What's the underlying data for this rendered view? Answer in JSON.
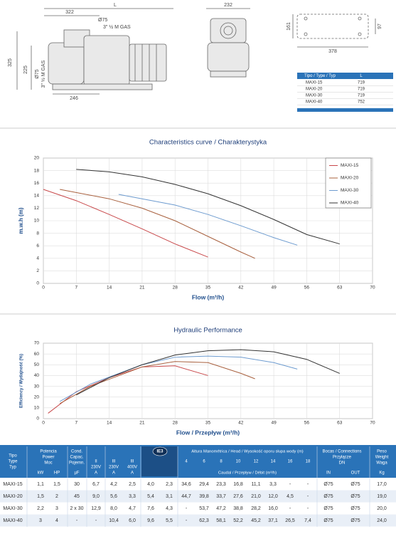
{
  "drawing": {
    "dims": {
      "side_length": "322",
      "total_length": "L",
      "outlet_dia": "Ø75",
      "outlet_thread": "3\" ½ M GAS",
      "height": "325",
      "inlet_height": "225",
      "inlet_dia": "Ø75",
      "inlet_thread": "3\" ½ M GAS",
      "base_length": "246",
      "front_width": "232",
      "foot_width": "161",
      "foot_hole": "97",
      "foot_length": "378"
    }
  },
  "type_table": {
    "header": [
      "Tipo / Type / Typ",
      "L"
    ],
    "rows": [
      [
        "MAXI-15",
        "719"
      ],
      [
        "MAXI-20",
        "719"
      ],
      [
        "MAXI-30",
        "719"
      ],
      [
        "MAXI-40",
        "752"
      ]
    ]
  },
  "chart_data": [
    {
      "type": "line",
      "title": "Characteristics curve / Charakterystyka",
      "x_label": "Flow (m³/h)",
      "y_label": "m.w.h (m)",
      "xlim": [
        0,
        70
      ],
      "xticks": [
        0,
        7,
        14,
        21,
        28,
        35,
        42,
        49,
        56,
        63,
        70
      ],
      "ylim": [
        0,
        20
      ],
      "yticks": [
        0,
        2,
        4,
        6,
        8,
        10,
        12,
        14,
        16,
        18,
        20
      ],
      "grid": true,
      "legend": "upper right",
      "series": [
        {
          "name": "MAXI-15",
          "color": "#c8484a",
          "x": [
            0,
            7,
            14,
            21,
            28,
            35
          ],
          "values": [
            15,
            13.2,
            11,
            8.7,
            6.3,
            4.2
          ]
        },
        {
          "name": "MAXI-20",
          "color": "#a8603e",
          "x": [
            3.5,
            14,
            21,
            28,
            35,
            42,
            45
          ],
          "values": [
            15,
            13.5,
            12,
            10,
            7.5,
            5,
            4
          ]
        },
        {
          "name": "MAXI-30",
          "color": "#6d9bcf",
          "x": [
            16,
            28,
            35,
            42,
            49,
            54
          ],
          "values": [
            14.2,
            12.5,
            11,
            9.2,
            7.3,
            6.1
          ]
        },
        {
          "name": "MAXI-40",
          "color": "#333333",
          "x": [
            7,
            14,
            21,
            28,
            35,
            42,
            49,
            56,
            63
          ],
          "values": [
            18.2,
            17.8,
            17,
            15.8,
            14.3,
            12.4,
            10.2,
            7.8,
            6.3
          ]
        }
      ]
    },
    {
      "type": "line",
      "title": "Hydraulic Performance",
      "x_label": "Flow / Przepływ (m³/h)",
      "y_label": "Efficiency / Wydajność (%)",
      "xlim": [
        0,
        70
      ],
      "xticks": [
        0,
        7,
        14,
        21,
        28,
        35,
        42,
        49,
        56,
        63,
        70
      ],
      "ylim": [
        0,
        70
      ],
      "yticks": [
        0,
        10,
        20,
        30,
        40,
        50,
        60,
        70
      ],
      "grid": true,
      "series": [
        {
          "color": "#c8484a",
          "x": [
            1,
            7,
            14,
            21,
            28,
            35
          ],
          "values": [
            5,
            25,
            38,
            48,
            49,
            40
          ]
        },
        {
          "color": "#a8603e",
          "x": [
            3.5,
            10,
            21,
            28,
            35,
            42,
            45
          ],
          "values": [
            14,
            30,
            48,
            53,
            52,
            42,
            37
          ]
        },
        {
          "color": "#6d9bcf",
          "x": [
            3.5,
            10,
            21,
            28,
            35,
            42,
            49,
            54
          ],
          "values": [
            16,
            32,
            50,
            57,
            58,
            57,
            52,
            46
          ]
        },
        {
          "color": "#333333",
          "x": [
            7,
            14,
            21,
            28,
            35,
            42,
            49,
            56,
            63
          ],
          "values": [
            22,
            38,
            50,
            59,
            63,
            64,
            62,
            55,
            42
          ]
        }
      ]
    }
  ],
  "spec_table": {
    "header": {
      "type": [
        "Tipo",
        "Type",
        "Typ"
      ],
      "power": [
        "Potencia",
        "Power",
        "Moc"
      ],
      "power_units": [
        "kW",
        "HP"
      ],
      "capacitor": [
        "Cond.",
        "Capac.",
        "Pojemn.",
        "µF"
      ],
      "current_groups": [
        [
          "II",
          "230V",
          "A"
        ],
        [
          "III",
          "230V",
          "A"
        ],
        [
          "III",
          "400V",
          "A"
        ],
        [
          "III",
          "230V",
          "A"
        ],
        [
          "III",
          "400V",
          "A"
        ]
      ],
      "ie3": "IE3",
      "head": "Altura Manométrica / Head / Wysokość oporu słupa wody (m)",
      "head_values": [
        "4",
        "6",
        "8",
        "10",
        "12",
        "14",
        "16",
        "18"
      ],
      "flow": "Caudal / Przepływ / Débit (m³/h)",
      "connections": [
        "Bocas / Connections",
        "Przyłącze",
        "DN"
      ],
      "connection_sides": [
        "IN",
        "OUT"
      ],
      "weight": [
        "Peso",
        "Weight",
        "Waga",
        "Kg"
      ]
    },
    "rows": [
      [
        "MAXI-15",
        "1,1",
        "1,5",
        "30",
        "6,7",
        "4,2",
        "2,5",
        "4,0",
        "2,3",
        "34,6",
        "29,4",
        "23,3",
        "16,8",
        "11,1",
        "3,3",
        "-",
        "-",
        "Ø75",
        "Ø75",
        "17,0"
      ],
      [
        "MAXI-20",
        "1,5",
        "2",
        "45",
        "9,0",
        "5,6",
        "3,3",
        "5,4",
        "3,1",
        "44,7",
        "39,8",
        "33,7",
        "27,6",
        "21,0",
        "12,0",
        "4,5",
        "-",
        "Ø75",
        "Ø75",
        "19,0"
      ],
      [
        "MAXI-30",
        "2,2",
        "3",
        "2 x 30",
        "12,9",
        "8,0",
        "4,7",
        "7,6",
        "4,3",
        "-",
        "53,7",
        "47,2",
        "38,8",
        "28,2",
        "16,0",
        "-",
        "-",
        "Ø75",
        "Ø75",
        "20,0"
      ],
      [
        "MAXI-40",
        "3",
        "4",
        "-",
        "-",
        "10,4",
        "6,0",
        "9,6",
        "5,5",
        "-",
        "62,3",
        "58,1",
        "52,2",
        "45,2",
        "37,1",
        "26,5",
        "7,4",
        "Ø75",
        "Ø75",
        "24,0"
      ]
    ]
  }
}
